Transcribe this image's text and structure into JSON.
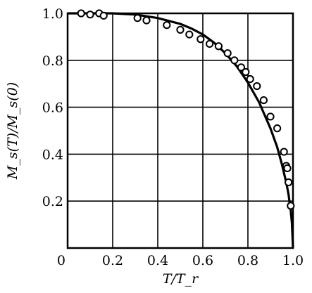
{
  "chart_data": {
    "type": "scatter",
    "xlabel": "T/T_r",
    "ylabel": "M_s(T)/M_s(0)",
    "xlim": [
      0,
      1.0
    ],
    "ylim": [
      0,
      1.0
    ],
    "x_ticks": [
      "0",
      "0.2",
      "0.4",
      "0.6",
      "0.8",
      "1.0"
    ],
    "y_ticks": [
      "0.2",
      "0.4",
      "0.6",
      "0.8",
      "1.0"
    ],
    "grid": true,
    "series": [
      {
        "kind": "points",
        "marker": "open-circle",
        "x": [
          0.06,
          0.1,
          0.14,
          0.16,
          0.31,
          0.35,
          0.44,
          0.5,
          0.54,
          0.59,
          0.63,
          0.67,
          0.71,
          0.74,
          0.77,
          0.79,
          0.81,
          0.84,
          0.87,
          0.9,
          0.93,
          0.96,
          0.97,
          0.975,
          0.98,
          0.99
        ],
        "y": [
          1.0,
          0.995,
          1.0,
          0.99,
          0.98,
          0.97,
          0.95,
          0.93,
          0.91,
          0.89,
          0.87,
          0.86,
          0.83,
          0.8,
          0.77,
          0.75,
          0.72,
          0.69,
          0.63,
          0.56,
          0.51,
          0.41,
          0.35,
          0.34,
          0.28,
          0.18
        ]
      },
      {
        "kind": "curve",
        "x": [
          0.0,
          0.1,
          0.2,
          0.3,
          0.4,
          0.5,
          0.55,
          0.6,
          0.65,
          0.7,
          0.75,
          0.8,
          0.85,
          0.9,
          0.93,
          0.95,
          0.97,
          0.98,
          0.99,
          0.995,
          1.0
        ],
        "y": [
          1.0,
          1.0,
          1.0,
          0.995,
          0.98,
          0.955,
          0.935,
          0.91,
          0.875,
          0.83,
          0.775,
          0.705,
          0.62,
          0.51,
          0.43,
          0.36,
          0.28,
          0.23,
          0.16,
          0.11,
          0.0
        ]
      }
    ]
  }
}
